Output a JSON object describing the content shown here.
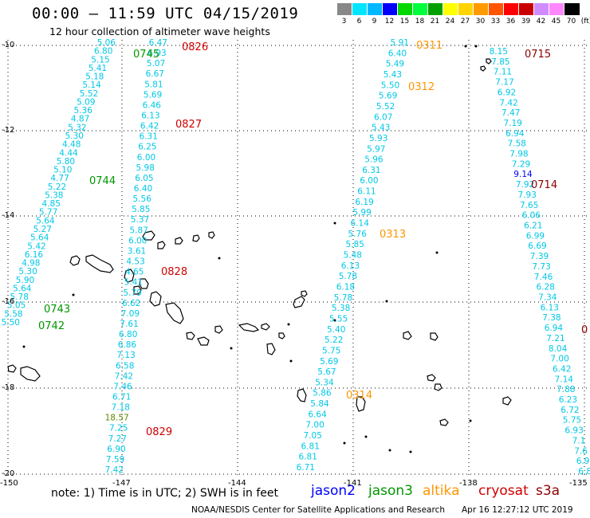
{
  "header": {
    "title": "00:00 – 11:59 UTC 04/15/2019",
    "subtitle": "12 hour collection of altimeter wave heights"
  },
  "color_scale": {
    "values": [
      "3",
      "6",
      "9",
      "12",
      "15",
      "18",
      "21",
      "24",
      "27",
      "30",
      "33",
      "36",
      "39",
      "42",
      "45",
      "70",
      "(ft)"
    ],
    "colors": [
      "#888888",
      "#00e5ff",
      "#00b8ff",
      "#0000ff",
      "#00d800",
      "#00ff3c",
      "#00a000",
      "#ffff00",
      "#ffd400",
      "#ff9a00",
      "#ff5500",
      "#ff0000",
      "#c80000",
      "#d08cff",
      "#ff88ff",
      "#000000"
    ]
  },
  "axes": {
    "lat_labels": [
      "-10",
      "-12",
      "-14",
      "-16",
      "-18",
      "-20"
    ],
    "lon_labels": [
      "-150",
      "-147",
      "-144",
      "-141",
      "-138",
      "-135"
    ]
  },
  "colors": {
    "swh": "#00c8e6",
    "jason2": "#0000ff",
    "jason3": "#009600",
    "altika": "#ff9600",
    "cryosat": "#d00000",
    "s3a": "#8b0000",
    "grid": "#000000"
  },
  "tracks": [
    {
      "id": "t1",
      "x0": 145,
      "y0": 57,
      "x1": 25,
      "y1": 408,
      "values": [
        "5.06",
        "6.80",
        "5.15",
        "5.41",
        "5.18",
        "5.14",
        "5.52",
        "5.09",
        "5.36",
        "4.87",
        "5.32",
        "5.30",
        "4.48",
        "4.44",
        "5.80",
        "5.10",
        "4.77",
        "5.22",
        "5.38",
        "4.85",
        "5.77",
        "5.64",
        "5.27",
        "5.64",
        "5.42",
        "6.16",
        "4.98",
        "5.30",
        "5.90",
        "5.64",
        "5.78",
        "5.05",
        "5.58",
        "5.50"
      ]
    },
    {
      "id": "t2",
      "x0": 210,
      "y0": 57,
      "x1": 155,
      "y1": 593,
      "values": [
        "6.47",
        "6.93",
        "5.07",
        "6.67",
        "5.81",
        "5.69",
        "6.46",
        "6.13",
        "6.42",
        "6.31",
        "6.25",
        "6.00",
        "5.98",
        "6.05",
        "6.40",
        "5.56",
        "5.85",
        "5.37",
        "5.87",
        "6.00",
        "3.61",
        "4.53",
        "4.65",
        "5.41",
        "5.79",
        "6.62",
        "7.09",
        "7.61",
        "6.80",
        "6.86",
        "7.13",
        "6.58",
        "7.42",
        "7.46",
        "6.71",
        "7.18",
        "18.57",
        "7.25",
        "7.27",
        "6.90",
        "7.59",
        "7.42"
      ]
    },
    {
      "id": "t3",
      "x0": 513,
      "y0": 57,
      "x1": 395,
      "y1": 590,
      "values": [
        "5.91",
        "6.40",
        "5.49",
        "5.43",
        "5.50",
        "5.69",
        "5.52",
        "6.07",
        "5.43",
        "5.93",
        "5.97",
        "5.96",
        "6.31",
        "6.00",
        "6.11",
        "6.19",
        "5.99",
        "6.14",
        "5.76",
        "5.85",
        "5.48",
        "6.13",
        "5.78",
        "6.18",
        "5.78",
        "5.38",
        "5.55",
        "5.40",
        "5.22",
        "5.75",
        "5.69",
        "5.67",
        "5.34",
        "5.86",
        "5.84",
        "6.64",
        "7.00",
        "7.05",
        "6.81",
        "6.81",
        "6.71"
      ]
    },
    {
      "id": "t4",
      "x0": 637,
      "y0": 68,
      "x1": 742,
      "y1": 595,
      "values": [
        "8.15",
        "7.85",
        "7.11",
        "7.17",
        "6.92",
        "7.42",
        "7.47",
        "7.19",
        "6.94",
        "7.58",
        "7.98",
        "7.29",
        "9.14",
        "7.92",
        "7.93",
        "7.65",
        "6.06",
        "6.21",
        "6.99",
        "6.69",
        "7.39",
        "7.73",
        "7.46",
        "6.28",
        "7.34",
        "6.13",
        "7.38",
        "6.94",
        "7.21",
        "8.04",
        "7.00",
        "6.42",
        "7.14",
        "7.88",
        "6.23",
        "6.72",
        "5.75",
        "6.93",
        "7.1",
        "7.6",
        "6.9",
        "6.8"
      ]
    }
  ],
  "time_labels": [
    {
      "text": "0745",
      "sat": "jason3"
    },
    {
      "text": "0826",
      "sat": "cryosat"
    },
    {
      "text": "0827",
      "sat": "cryosat"
    },
    {
      "text": "0744",
      "sat": "jason3"
    },
    {
      "text": "0828",
      "sat": "cryosat"
    },
    {
      "text": "0743",
      "sat": "jason3"
    },
    {
      "text": "0742",
      "sat": "jason3"
    },
    {
      "text": "0829",
      "sat": "cryosat"
    },
    {
      "text": "0311",
      "sat": "altika"
    },
    {
      "text": "0312",
      "sat": "altika"
    },
    {
      "text": "0313",
      "sat": "altika"
    },
    {
      "text": "0314",
      "sat": "altika"
    },
    {
      "text": "0715",
      "sat": "s3a"
    },
    {
      "text": "0714",
      "sat": "s3a"
    },
    {
      "text": "0",
      "sat": "s3a"
    }
  ],
  "footer": {
    "note": "note:  1) Time is in UTC;  2) SWH is in feet",
    "legend": [
      {
        "label": "jason2",
        "sat": "jason2"
      },
      {
        "label": "jason3",
        "sat": "jason3"
      },
      {
        "label": "altika",
        "sat": "altika"
      },
      {
        "label": "cryosat",
        "sat": "cryosat"
      },
      {
        "label": "s3a",
        "sat": "s3a"
      }
    ],
    "credits": "NOAA/NESDIS Center for Satellite Applications and Research",
    "timestamp": "Apr 16 12:27:12 UTC 2019"
  }
}
